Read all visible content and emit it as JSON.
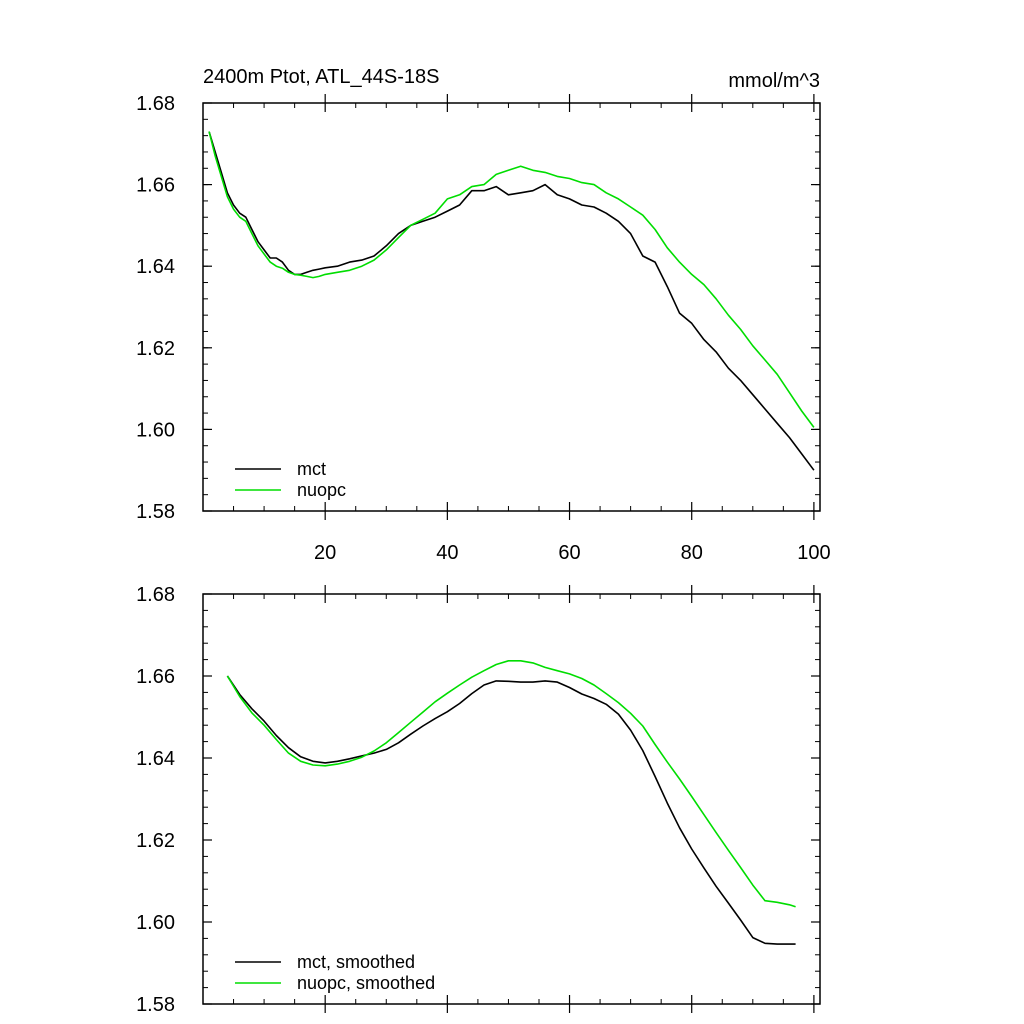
{
  "chart_data": [
    {
      "type": "line",
      "title": "2400m Ptot, ATL_44S-18S",
      "units": "mmol/m^3",
      "xlim": [
        0,
        101
      ],
      "ylim": [
        1.58,
        1.68
      ],
      "xticks": [
        20,
        40,
        60,
        80,
        100
      ],
      "xtick_labels": [
        "20",
        "40",
        "60",
        "80",
        "100"
      ],
      "yticks": [
        1.58,
        1.6,
        1.62,
        1.64,
        1.66,
        1.68
      ],
      "ytick_labels": [
        "1.58",
        "1.60",
        "1.62",
        "1.64",
        "1.66",
        "1.68"
      ],
      "legend_position": "bottom-left",
      "series": [
        {
          "name": "mct",
          "color": "#000000",
          "x": [
            1,
            2,
            3,
            4,
            5,
            6,
            7,
            8,
            9,
            10,
            11,
            12,
            13,
            14,
            15,
            16,
            17,
            18,
            19,
            20,
            22,
            24,
            26,
            28,
            30,
            32,
            34,
            36,
            38,
            40,
            42,
            44,
            46,
            48,
            50,
            52,
            54,
            56,
            58,
            60,
            62,
            64,
            66,
            68,
            70,
            72,
            74,
            76,
            78,
            80,
            82,
            84,
            86,
            88,
            90,
            92,
            94,
            96,
            98,
            100
          ],
          "y": [
            1.673,
            1.668,
            1.663,
            1.658,
            1.655,
            1.653,
            1.652,
            1.649,
            1.646,
            1.644,
            1.642,
            1.642,
            1.641,
            1.639,
            1.638,
            1.638,
            1.6385,
            1.639,
            1.6393,
            1.6396,
            1.64,
            1.641,
            1.6415,
            1.6425,
            1.645,
            1.648,
            1.65,
            1.651,
            1.652,
            1.6535,
            1.655,
            1.6585,
            1.6585,
            1.6595,
            1.6575,
            1.658,
            1.6585,
            1.66,
            1.6575,
            1.6565,
            1.655,
            1.6545,
            1.653,
            1.651,
            1.648,
            1.6425,
            1.641,
            1.635,
            1.6285,
            1.626,
            1.622,
            1.619,
            1.615,
            1.612,
            1.6085,
            1.605,
            1.6015,
            1.598,
            1.594,
            1.59
          ]
        },
        {
          "name": "nuopc",
          "color": "#00dd00",
          "x": [
            1,
            2,
            3,
            4,
            5,
            6,
            7,
            8,
            9,
            10,
            11,
            12,
            13,
            14,
            15,
            16,
            17,
            18,
            19,
            20,
            22,
            24,
            26,
            28,
            30,
            32,
            34,
            36,
            38,
            40,
            42,
            44,
            46,
            48,
            50,
            52,
            54,
            56,
            58,
            60,
            62,
            64,
            66,
            68,
            70,
            72,
            74,
            76,
            78,
            80,
            82,
            84,
            86,
            88,
            90,
            92,
            94,
            96,
            98,
            100
          ],
          "y": [
            1.673,
            1.667,
            1.662,
            1.657,
            1.654,
            1.652,
            1.651,
            1.648,
            1.645,
            1.643,
            1.641,
            1.64,
            1.6395,
            1.6385,
            1.638,
            1.6378,
            1.6375,
            1.6372,
            1.6375,
            1.638,
            1.6385,
            1.639,
            1.64,
            1.6415,
            1.644,
            1.647,
            1.65,
            1.6515,
            1.653,
            1.6565,
            1.6575,
            1.6595,
            1.66,
            1.6625,
            1.6635,
            1.6645,
            1.6635,
            1.663,
            1.662,
            1.6615,
            1.6605,
            1.66,
            1.658,
            1.6565,
            1.6545,
            1.6525,
            1.649,
            1.6445,
            1.641,
            1.638,
            1.6355,
            1.632,
            1.628,
            1.6245,
            1.6205,
            1.617,
            1.6135,
            1.609,
            1.6045,
            1.6005
          ]
        }
      ]
    },
    {
      "type": "line",
      "title": "",
      "xlim": [
        0,
        101
      ],
      "ylim": [
        1.58,
        1.68
      ],
      "xticks": [
        20,
        40,
        60,
        80,
        100
      ],
      "yticks": [
        1.58,
        1.6,
        1.62,
        1.64,
        1.66,
        1.68
      ],
      "ytick_labels": [
        "1.58",
        "1.60",
        "1.62",
        "1.64",
        "1.66",
        "1.68"
      ],
      "legend_position": "bottom-left",
      "series": [
        {
          "name": "mct, smoothed",
          "color": "#000000",
          "x": [
            4,
            6,
            8,
            10,
            12,
            14,
            16,
            18,
            20,
            22,
            24,
            26,
            28,
            30,
            32,
            34,
            36,
            38,
            40,
            42,
            44,
            46,
            48,
            50,
            52,
            54,
            56,
            58,
            60,
            62,
            64,
            66,
            68,
            70,
            72,
            74,
            76,
            78,
            80,
            82,
            84,
            86,
            88,
            90,
            92,
            94,
            96,
            97
          ],
          "y": [
            1.66,
            1.6555,
            1.652,
            1.649,
            1.6455,
            1.6425,
            1.6403,
            1.6392,
            1.6388,
            1.6392,
            1.6398,
            1.6405,
            1.6412,
            1.6421,
            1.6437,
            1.6458,
            1.6478,
            1.6496,
            1.6513,
            1.6533,
            1.6557,
            1.6578,
            1.6588,
            1.6587,
            1.6585,
            1.6585,
            1.6588,
            1.6585,
            1.6572,
            1.6556,
            1.6545,
            1.6531,
            1.6507,
            1.6468,
            1.6418,
            1.6355,
            1.629,
            1.623,
            1.6178,
            1.6132,
            1.6087,
            1.6046,
            1.6005,
            1.5962,
            1.5948,
            1.5946,
            1.5946,
            1.5946
          ]
        },
        {
          "name": "nuopc, smoothed",
          "color": "#00dd00",
          "x": [
            4,
            6,
            8,
            10,
            12,
            14,
            16,
            18,
            20,
            22,
            24,
            26,
            28,
            30,
            32,
            34,
            36,
            38,
            40,
            42,
            44,
            46,
            48,
            50,
            52,
            54,
            56,
            58,
            60,
            62,
            64,
            66,
            68,
            70,
            72,
            74,
            76,
            78,
            80,
            82,
            84,
            86,
            88,
            90,
            92,
            94,
            96,
            97
          ],
          "y": [
            1.66,
            1.655,
            1.651,
            1.648,
            1.6445,
            1.6412,
            1.6392,
            1.6383,
            1.6381,
            1.6385,
            1.6392,
            1.6402,
            1.6417,
            1.6437,
            1.6462,
            1.6487,
            1.6512,
            1.6537,
            1.6558,
            1.6578,
            1.6597,
            1.6613,
            1.6628,
            1.6637,
            1.6637,
            1.6632,
            1.6621,
            1.6613,
            1.6605,
            1.6594,
            1.6578,
            1.6557,
            1.6535,
            1.6509,
            1.6478,
            1.6433,
            1.639,
            1.6349,
            1.6306,
            1.6262,
            1.6218,
            1.6175,
            1.6133,
            1.609,
            1.6052,
            1.6048,
            1.6042,
            1.6037
          ]
        }
      ]
    }
  ]
}
